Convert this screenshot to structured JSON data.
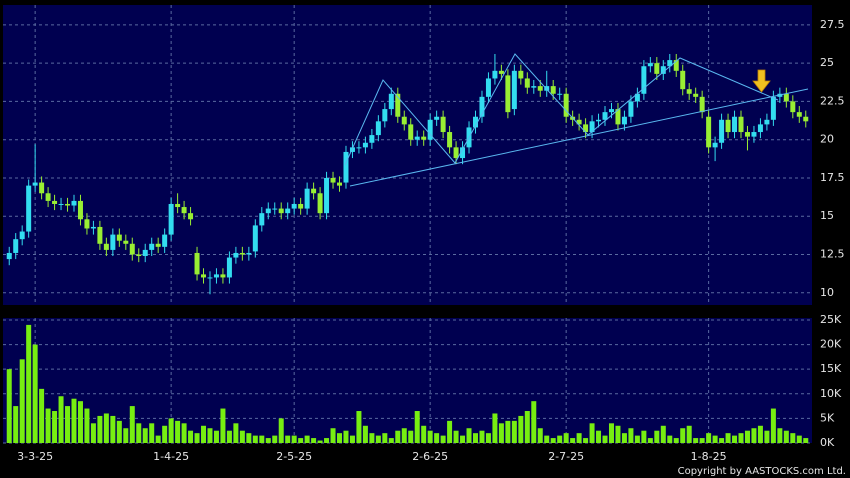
{
  "chart_data": {
    "type": "candlestick",
    "categories": [
      null,
      null,
      null,
      null,
      "3-3-25",
      null,
      null,
      null,
      null,
      null,
      null,
      null,
      null,
      null,
      null,
      null,
      null,
      null,
      null,
      null,
      null,
      null,
      null,
      null,
      null,
      "1-4-25",
      null,
      null,
      null,
      null,
      null,
      null,
      null,
      null,
      null,
      null,
      null,
      null,
      null,
      null,
      null,
      null,
      null,
      null,
      "2-5-25",
      null,
      null,
      null,
      null,
      null,
      null,
      null,
      null,
      null,
      null,
      null,
      null,
      null,
      null,
      null,
      null,
      null,
      null,
      null,
      null,
      "2-6-25",
      null,
      null,
      null,
      null,
      null,
      null,
      null,
      null,
      null,
      null,
      null,
      null,
      null,
      null,
      null,
      null,
      null,
      null,
      null,
      null,
      "2-7-25",
      null,
      null,
      null,
      null,
      null,
      null,
      null,
      null,
      null,
      null,
      null,
      null,
      null,
      null,
      null,
      null,
      null,
      null,
      null,
      null,
      null,
      "1-8-25",
      null,
      null,
      null,
      null,
      null,
      null,
      null,
      null,
      null,
      null,
      null,
      null,
      null,
      null,
      null
    ],
    "open": [
      12.2,
      12.6,
      13.5,
      14,
      17,
      17.2,
      16.5,
      16,
      15.8,
      15.8,
      15.7,
      16,
      14.8,
      14.2,
      14.3,
      13.2,
      12.8,
      13.8,
      13.4,
      13.2,
      12.5,
      12.4,
      12.8,
      13.2,
      13,
      13.8,
      15.8,
      15.6,
      15.2,
      12.6,
      11.2,
      11,
      11,
      11.2,
      11,
      12.3,
      12.6,
      12.5,
      12.7,
      14.4,
      15.2,
      15.5,
      15.5,
      15.2,
      15.5,
      15.8,
      15.5,
      16.8,
      16.5,
      15.2,
      17.5,
      17.2,
      17.2,
      19.2,
      19.5,
      19.5,
      19.8,
      20.3,
      21.2,
      22,
      23,
      21.5,
      21,
      20,
      20.2,
      20,
      21.3,
      21.5,
      20.5,
      19.5,
      18.8,
      19.5,
      20.8,
      21.5,
      22.8,
      24,
      24.5,
      24.2,
      22,
      24.5,
      24,
      23.4,
      23.5,
      23.2,
      23.5,
      23,
      23,
      21.5,
      21.3,
      21,
      20.5,
      21.2,
      21.3,
      21.8,
      22,
      21,
      21.5,
      22.5,
      23,
      24.8,
      25,
      24.3,
      24.8,
      25.2,
      24.5,
      23.3,
      23,
      22.8,
      21.5,
      19.5,
      19.8,
      21.3,
      20.5,
      21.5,
      20.5,
      20.2,
      20.5,
      21,
      21.3,
      22.8,
      23,
      22.5,
      21.8,
      21.5
    ],
    "high": [
      13,
      13.9,
      14.4,
      17.4,
      19.7,
      17.6,
      16.9,
      16.4,
      16.2,
      16.2,
      16.4,
      16.4,
      15.2,
      14.7,
      14.7,
      13.6,
      14.2,
      14.2,
      13.8,
      13.6,
      12.9,
      13.2,
      13.6,
      13.6,
      14.2,
      16.2,
      16.5,
      16,
      15.6,
      13,
      11.6,
      11.4,
      11.6,
      11.6,
      12.7,
      13,
      13,
      13,
      14.8,
      15.6,
      15.9,
      15.9,
      15.9,
      15.9,
      16.2,
      16.2,
      17.2,
      17.2,
      16.9,
      17.9,
      17.9,
      17.6,
      19.6,
      19.9,
      19.9,
      20.2,
      20.7,
      21.6,
      22.4,
      23.4,
      23.4,
      21.9,
      21.4,
      20.6,
      20.6,
      21.7,
      21.9,
      21.9,
      20.9,
      19.9,
      19.9,
      21.2,
      21.9,
      23.2,
      24.4,
      25.6,
      24.9,
      24.6,
      24.9,
      24.9,
      24.4,
      23.9,
      23.9,
      24.5,
      23.9,
      23.4,
      23.4,
      21.9,
      21.7,
      21.4,
      21.6,
      21.7,
      22.2,
      22.4,
      22.4,
      21.9,
      22.9,
      23.4,
      25.2,
      25.4,
      25.4,
      25.2,
      25.6,
      25.6,
      24.9,
      23.7,
      23.4,
      23.2,
      21.9,
      20.2,
      21.7,
      21.7,
      21.9,
      21.9,
      20.9,
      20.9,
      21.4,
      21.7,
      23.2,
      23.4,
      23.4,
      22.9,
      22.2,
      21.9
    ],
    "low": [
      11.8,
      12.2,
      13.1,
      13.6,
      16.6,
      16.1,
      15.6,
      15.4,
      15.4,
      15.3,
      15.3,
      14.4,
      13.8,
      13.8,
      12.8,
      12.4,
      12.4,
      13,
      12.8,
      12.1,
      12,
      12,
      12.4,
      12.6,
      12.6,
      13.4,
      15.2,
      14.8,
      14.4,
      10.8,
      10.6,
      9.9,
      10.6,
      10.6,
      10.6,
      11.9,
      12.1,
      12.1,
      12.3,
      14,
      14.8,
      15.1,
      14.8,
      14.8,
      15.1,
      15.1,
      15.1,
      16.1,
      14.8,
      14.8,
      16.8,
      16.6,
      16.8,
      18.8,
      19.1,
      19.1,
      19.4,
      19.9,
      20.8,
      21.6,
      21.1,
      20.6,
      19.6,
      19.6,
      19.6,
      19.6,
      20.9,
      20.1,
      19.1,
      18.4,
      18.4,
      19.1,
      20.4,
      21.1,
      22.4,
      23.6,
      23.9,
      21.4,
      21.6,
      23.6,
      23,
      23,
      22.8,
      22.8,
      22.6,
      22.6,
      21.1,
      20.9,
      20.6,
      20.1,
      20.1,
      20.8,
      20.9,
      21.4,
      20.6,
      20.6,
      21.1,
      22.1,
      22.6,
      24.4,
      23.9,
      23.9,
      24.4,
      24.1,
      22.9,
      22.6,
      22.4,
      21.4,
      19.1,
      18.6,
      19.4,
      20.1,
      20.1,
      20.1,
      19.3,
      19.8,
      20.1,
      20.6,
      20.9,
      22.4,
      22.1,
      21.4,
      21.1,
      20.8
    ],
    "close": [
      12.6,
      13.5,
      14,
      17,
      17.2,
      16.5,
      16,
      15.8,
      15.8,
      15.7,
      16,
      14.8,
      14.2,
      14.3,
      13.2,
      12.8,
      13.8,
      13.4,
      13.2,
      12.5,
      12.4,
      12.8,
      13.2,
      13,
      13.8,
      15.8,
      15.6,
      15.2,
      14.8,
      11.2,
      11,
      11,
      11.2,
      11,
      12.3,
      12.6,
      12.5,
      12.6,
      14.4,
      15.2,
      15.5,
      15.5,
      15.2,
      15.5,
      15.8,
      15.5,
      16.8,
      16.5,
      15.2,
      17.5,
      17.2,
      17,
      19.2,
      19.5,
      19.5,
      19.8,
      20.3,
      21.2,
      22,
      23,
      21.5,
      21,
      20,
      20.2,
      20,
      21.3,
      21.5,
      20.5,
      19.5,
      18.8,
      19.5,
      20.8,
      21.5,
      22.8,
      24,
      24.5,
      24.3,
      21.8,
      24.5,
      24,
      23.4,
      23.5,
      23.2,
      23.5,
      23,
      23,
      21.5,
      21.3,
      21,
      20.5,
      21.2,
      21.3,
      21.8,
      22,
      21,
      21.5,
      22.5,
      23,
      24.8,
      25,
      24.3,
      24.8,
      25.2,
      24.5,
      23.3,
      23,
      22.8,
      21.8,
      19.5,
      19.8,
      21.3,
      20.5,
      21.5,
      20.5,
      20.2,
      20.5,
      21,
      21.3,
      22.8,
      23,
      22.5,
      21.8,
      21.5,
      21.2
    ],
    "volume": [
      15000,
      7500,
      17000,
      24000,
      20000,
      11000,
      7000,
      6500,
      9500,
      7500,
      9000,
      8500,
      7000,
      4000,
      5500,
      6000,
      5500,
      4500,
      3000,
      7500,
      4000,
      3000,
      4000,
      1500,
      3500,
      5000,
      4500,
      4000,
      2500,
      2000,
      3500,
      3000,
      2500,
      7000,
      2500,
      4000,
      2500,
      2000,
      1500,
      1500,
      1000,
      1500,
      5000,
      1500,
      1500,
      1000,
      1500,
      1000,
      500,
      1000,
      3000,
      2000,
      2500,
      1500,
      6500,
      3500,
      2000,
      1500,
      2000,
      1000,
      2500,
      3000,
      2500,
      6500,
      3500,
      2500,
      2000,
      1500,
      4500,
      2500,
      1500,
      3000,
      2000,
      2500,
      2000,
      6000,
      4000,
      4500,
      4500,
      5500,
      6500,
      8500,
      3000,
      1500,
      1000,
      1500,
      2000,
      1000,
      2000,
      1000,
      4000,
      2500,
      1500,
      4000,
      3500,
      2000,
      3000,
      1500,
      2500,
      1000,
      2500,
      3500,
      1500,
      1000,
      3000,
      3500,
      1000,
      1000,
      2000,
      1500,
      1000,
      2000,
      1500,
      2000,
      2500,
      3000,
      3500,
      2500,
      7000,
      3000,
      2500,
      2000,
      1500,
      1000
    ],
    "up_color": "#33ddf0",
    "down_color": "#99ee33",
    "volume_color": "#77ee11",
    "ylim": [
      9.2,
      28.8
    ],
    "yticks": [
      10,
      12.5,
      15,
      17.5,
      20,
      22.5,
      25,
      27.5
    ],
    "volume_ylim": [
      0,
      25400
    ],
    "volume_yticks": [
      {
        "value": 0,
        "label": "0K"
      },
      {
        "value": 5000,
        "label": "5K"
      },
      {
        "value": 10000,
        "label": "10K"
      },
      {
        "value": 15000,
        "label": "15K"
      },
      {
        "value": 20000,
        "label": "20K"
      },
      {
        "value": 25000,
        "label": "25K"
      }
    ],
    "grid": true,
    "copyright": "Copyright by AASTOCKS.com Ltd."
  }
}
